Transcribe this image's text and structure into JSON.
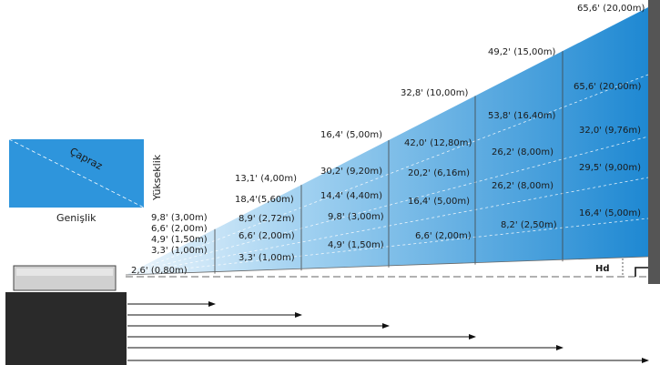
{
  "screen_diagram": {
    "diagonal_label": "Çapraz",
    "width_label": "Genişlik",
    "height_label": "Yükseklik"
  },
  "offset_label": "Hd",
  "colors": {
    "beam_light": "#e8f3fb",
    "beam_dark": "#1f8fd6",
    "screen_fill": "#2e95dc",
    "projector_body": "#2a2a2a",
    "wall": "#555555"
  },
  "distance_headings": [
    "2,6' (0,80m)",
    "13,1' (4,00m)",
    "16,4' (5,00m)",
    "32,8' (10,00m)",
    "49,2' (15,00m)",
    "65,6' (20,00m)"
  ],
  "columns": [
    {
      "labels": [
        "9,8' (3,00m)",
        "6,6' (2,00m)",
        "4,9' (1,50m)",
        "3,3' (1,00m)"
      ]
    },
    {
      "labels": [
        "18,4'(5,60m)",
        "8,9' (2,72m)",
        "6,6' (2,00m)",
        "3,3' (1,00m)"
      ]
    },
    {
      "labels": [
        "30,2' (9,20m)",
        "14,4' (4,40m)",
        "9,8' (3,00m)",
        "4,9' (1,50m)"
      ]
    },
    {
      "labels": [
        "42,0' (12,80m)",
        "20,2' (6,16m)",
        "16,4' (5,00m)",
        "6,6' (2,00m)"
      ]
    },
    {
      "labels": [
        "53,8' (16,40m)",
        "26,2' (8,00m)",
        "26,2' (8,00m)",
        "8,2' (2,50m)"
      ]
    },
    {
      "labels": [
        "65,6' (20,00m)",
        "32,0' (9,76m)",
        "29,5' (9,00m)",
        "16,4' (5,00m)"
      ]
    }
  ]
}
